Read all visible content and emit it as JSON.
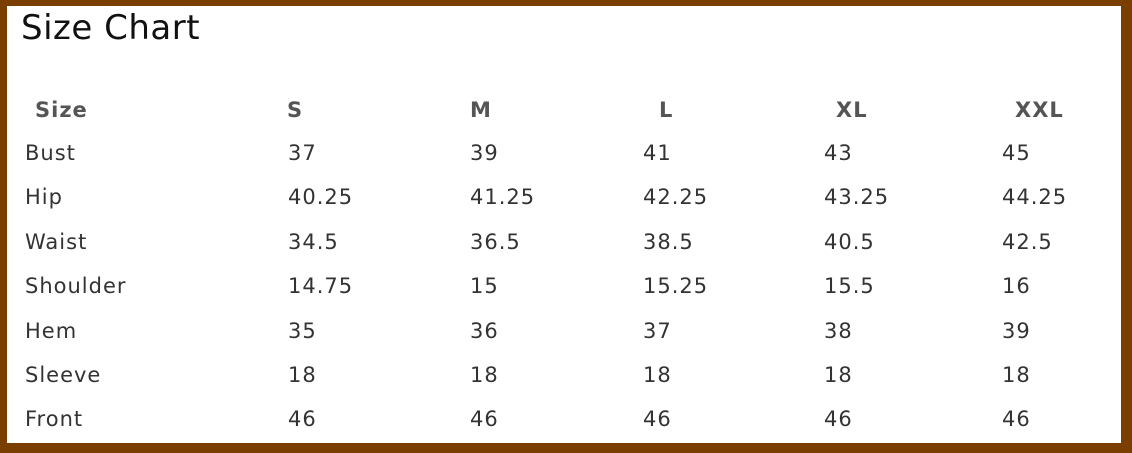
{
  "title": "Size Chart",
  "table": {
    "headers": [
      "Size",
      "S",
      "M",
      "L",
      "XL",
      "XXL"
    ],
    "rows": [
      [
        "Bust",
        "37",
        "39",
        "41",
        "43",
        "45"
      ],
      [
        "Hip",
        "40.25",
        "41.25",
        "42.25",
        "43.25",
        "44.25"
      ],
      [
        "Waist",
        "34.5",
        "36.5",
        "38.5",
        "40.5",
        "42.5"
      ],
      [
        "Shoulder",
        "14.75",
        "15",
        "15.25",
        "15.5",
        "16"
      ],
      [
        "Hem",
        "35",
        "36",
        "37",
        "38",
        "39"
      ],
      [
        "Sleeve",
        "18",
        "18",
        "18",
        "18",
        "18"
      ],
      [
        "Front",
        "46",
        "46",
        "46",
        "46",
        "46"
      ]
    ]
  },
  "colors": {
    "border": "#7a3f00"
  }
}
